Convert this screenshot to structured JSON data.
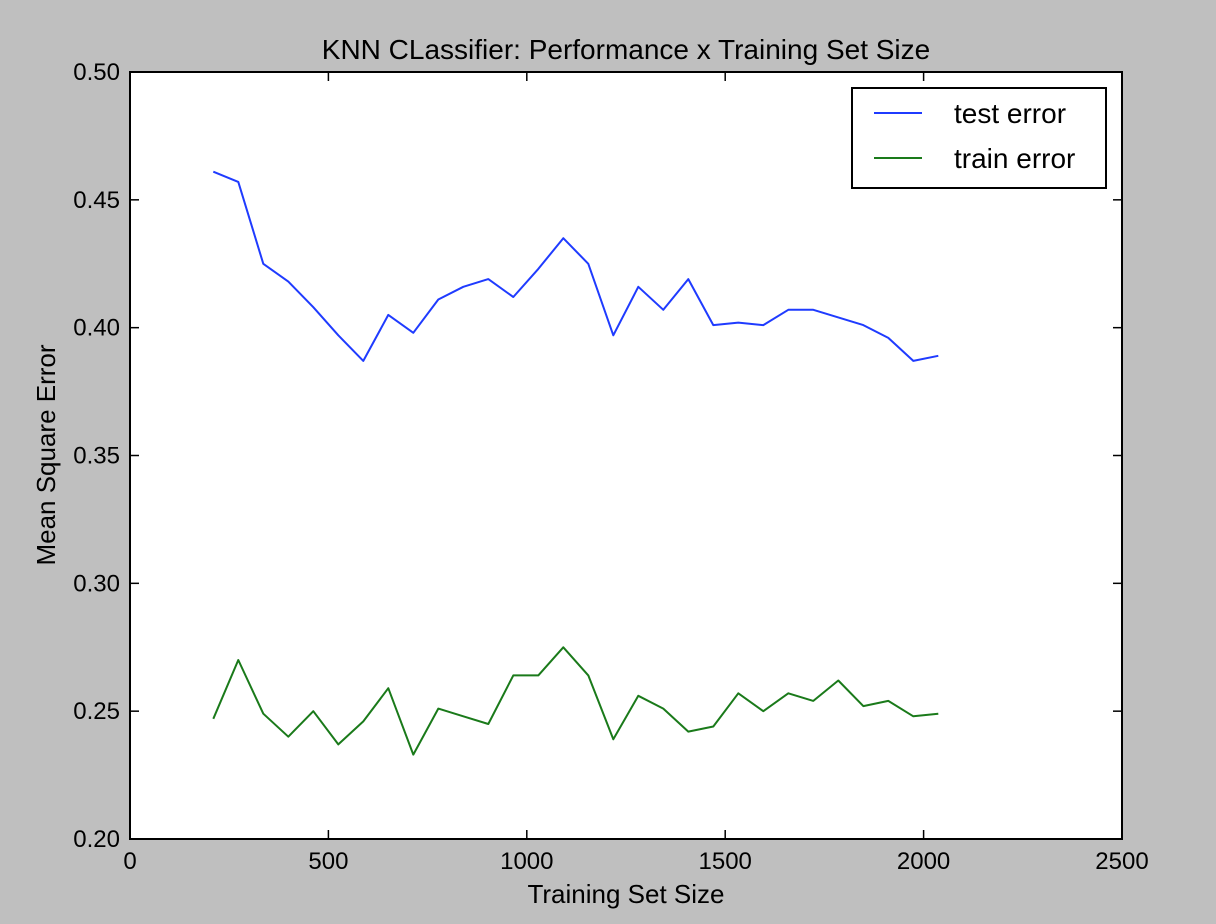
{
  "chart_data": {
    "type": "line",
    "title": "KNN CLassifier: Performance x Training Set Size",
    "xlabel": "Training Set Size",
    "ylabel": "Mean Square Error",
    "xlim": [
      0,
      2500
    ],
    "ylim": [
      0.2,
      0.5
    ],
    "xticks": [
      0,
      500,
      1000,
      1500,
      2000,
      2500
    ],
    "yticks": [
      0.2,
      0.25,
      0.3,
      0.35,
      0.4,
      0.45,
      0.5
    ],
    "xtick_labels": [
      "0",
      "500",
      "1000",
      "1500",
      "2000",
      "2500"
    ],
    "ytick_labels": [
      "0.20",
      "0.25",
      "0.30",
      "0.35",
      "0.40",
      "0.45",
      "0.50"
    ],
    "grid": false,
    "legend": {
      "position": "top-right"
    },
    "x": [
      210,
      273,
      336,
      399,
      462,
      525,
      588,
      651,
      714,
      777,
      840,
      903,
      966,
      1029,
      1092,
      1155,
      1218,
      1281,
      1344,
      1407,
      1470,
      1533,
      1596,
      1659,
      1722,
      1785,
      1848,
      1911,
      1974,
      2037
    ],
    "series": [
      {
        "name": "test error",
        "color": "#1f3bff",
        "values": [
          0.461,
          0.457,
          0.425,
          0.418,
          0.408,
          0.397,
          0.387,
          0.405,
          0.398,
          0.411,
          0.416,
          0.419,
          0.412,
          0.423,
          0.435,
          0.425,
          0.397,
          0.416,
          0.407,
          0.419,
          0.401,
          0.402,
          0.401,
          0.407,
          0.407,
          0.404,
          0.401,
          0.396,
          0.387,
          0.389
        ]
      },
      {
        "name": "train error",
        "color": "#1a7a1a",
        "values": [
          0.247,
          0.27,
          0.249,
          0.24,
          0.25,
          0.237,
          0.246,
          0.259,
          0.233,
          0.251,
          0.248,
          0.245,
          0.264,
          0.264,
          0.275,
          0.264,
          0.239,
          0.256,
          0.251,
          0.242,
          0.244,
          0.257,
          0.25,
          0.257,
          0.254,
          0.262,
          0.252,
          0.254,
          0.248,
          0.249
        ]
      }
    ]
  }
}
